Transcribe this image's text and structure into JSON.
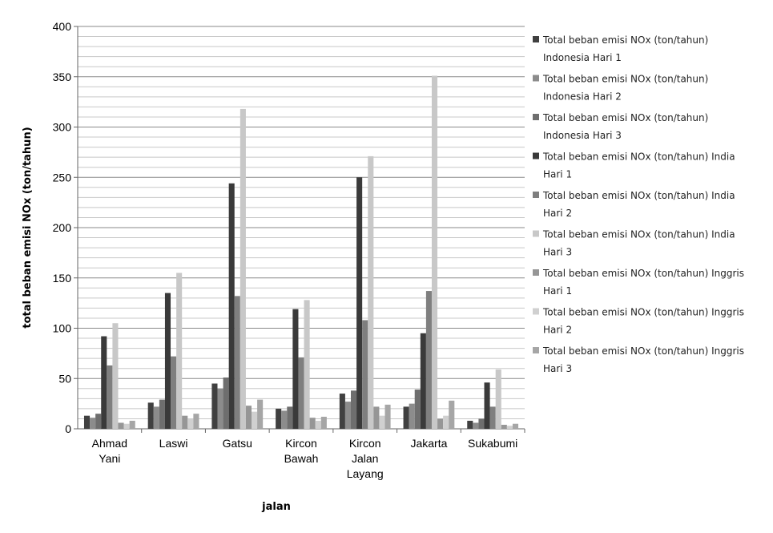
{
  "chart_data": {
    "type": "bar",
    "x_label": "jalan",
    "y_label": "total beban emisi NOx  (ton/tahun)",
    "categories": [
      "Ahmad Yani",
      "Laswi",
      "Gatsu",
      "Kircon Bawah",
      "Kircon Jalan Layang",
      "Jakarta",
      "Sukabumi"
    ],
    "series": [
      {
        "name": "Total beban emisi NOx (ton/tahun) Indonesia Hari 1",
        "color": "#404040",
        "values": [
          13,
          26,
          45,
          20,
          35,
          22,
          8
        ]
      },
      {
        "name": "Total beban emisi NOx (ton/tahun) Indonesia Hari 2",
        "color": "#8c8c8c",
        "values": [
          11,
          22,
          40,
          18,
          27,
          25,
          6
        ]
      },
      {
        "name": "Total beban emisi NOx (ton/tahun) Indonesia Hari 3",
        "color": "#6e6e6e",
        "values": [
          15,
          29,
          51,
          22,
          38,
          39,
          10
        ]
      },
      {
        "name": "Total beban emisi NOx (ton/tahun) India Hari 1",
        "color": "#3a3a3a",
        "values": [
          92,
          135,
          244,
          119,
          250,
          95,
          46
        ]
      },
      {
        "name": "Total beban emisi NOx (ton/tahun) India Hari 2",
        "color": "#7f7f7f",
        "values": [
          63,
          72,
          132,
          71,
          108,
          137,
          22
        ]
      },
      {
        "name": "Total beban emisi NOx (ton/tahun) India Hari 3",
        "color": "#c8c8c8",
        "values": [
          105,
          155,
          318,
          128,
          271,
          351,
          59
        ]
      },
      {
        "name": "Total beban emisi NOx (ton/tahun) Inggris Hari 1",
        "color": "#969696",
        "values": [
          6,
          13,
          23,
          11,
          22,
          10,
          4
        ]
      },
      {
        "name": "Total beban emisi NOx (ton/tahun) Inggris Hari 2",
        "color": "#d0d0d0",
        "values": [
          5,
          10,
          17,
          8,
          13,
          13,
          3
        ]
      },
      {
        "name": "Total beban emisi NOx (ton/tahun) Inggris Hari 3",
        "color": "#a6a6a6",
        "values": [
          8,
          15,
          29,
          12,
          24,
          28,
          5
        ]
      }
    ],
    "ylim": [
      0,
      400
    ],
    "yticks": [
      0,
      50,
      100,
      150,
      200,
      250,
      300,
      350,
      400
    ],
    "minor_yticks": [
      10,
      20,
      30,
      40,
      60,
      70,
      80,
      90,
      110,
      120,
      130,
      140,
      160,
      170,
      180,
      190,
      210,
      220,
      230,
      240,
      260,
      270,
      280,
      290,
      310,
      320,
      330,
      340,
      360,
      370,
      380,
      390
    ],
    "grid": true,
    "legend": "right"
  }
}
